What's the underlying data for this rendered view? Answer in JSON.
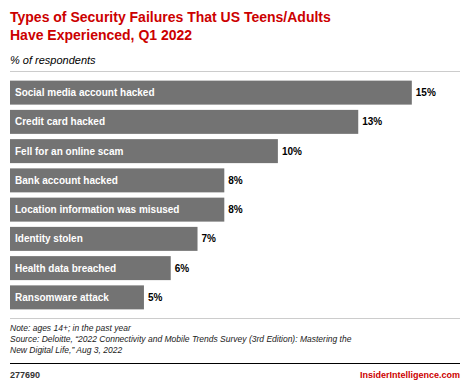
{
  "chart_data": {
    "type": "bar",
    "orientation": "horizontal",
    "title": "Types of Security Failures That US Teens/Adults\nHave Experienced, Q1 2022",
    "subtitle": "% of respondents",
    "categories": [
      "Social media account hacked",
      "Credit card hacked",
      "Fell for an online scam",
      "Bank account hacked",
      "Location information was misused",
      "Identity stolen",
      "Health data breached",
      "Ransomware attack"
    ],
    "values": [
      15,
      13,
      10,
      8,
      8,
      7,
      6,
      5
    ],
    "value_labels": [
      "15%",
      "13%",
      "10%",
      "8%",
      "8%",
      "7%",
      "6%",
      "5%"
    ],
    "color": "#737373",
    "xlim": [
      0,
      16.5
    ],
    "data_labels": true,
    "tick_labels": false,
    "note": "Note: ages 14+; in the past year\nSource: Deloitte, “2022 Connectivity and Mobile Trends Survey (3rd Edition): Mastering the\nNew Digital Life,” Aug 3, 2022",
    "footer_left": "277690",
    "footer_right": "InsiderIntelligence.com"
  }
}
